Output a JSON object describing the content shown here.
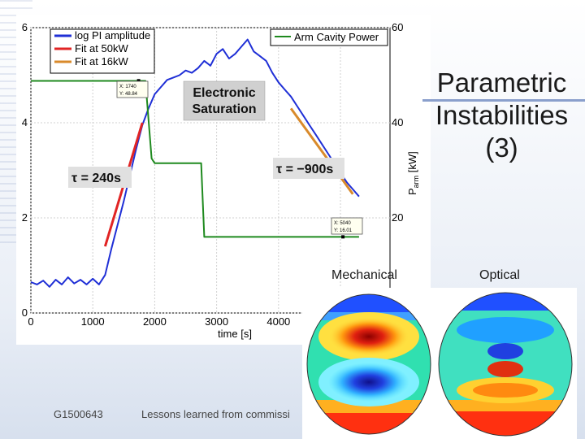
{
  "slide": {
    "title_lines": [
      "Parametric",
      "Instabilities",
      "(3)"
    ],
    "footer_id": "G1500643",
    "footer_text": "Lessons learned from commissi"
  },
  "panels": {
    "mechanical_label": "Mechanical",
    "optical_label": "Optical"
  },
  "colors": {
    "pi": "#1f2fd6",
    "fit50": "#e12424",
    "fit16": "#d98a2b",
    "power": "#1f8a1f"
  },
  "chart_data": {
    "type": "line",
    "xlabel": "time [s]",
    "ylabel_right": "P_arm [kW]",
    "ylabel_right_main": "P",
    "ylabel_right_sub": "arm",
    "ylabel_right_unit": " [kW]",
    "xlim": [
      0,
      5800
    ],
    "ylim_left": [
      0,
      6
    ],
    "ylim_right": [
      0,
      60
    ],
    "x_ticks": [
      "0",
      "1000",
      "2000",
      "3000",
      "4000"
    ],
    "y_ticks_left": [
      "0",
      "2",
      "4",
      "6"
    ],
    "y_ticks_right": [
      "20",
      "40",
      "60"
    ],
    "grid": true,
    "legend_left": [
      "log PI amplitude",
      "Fit at 50kW",
      "Fit at 16kW"
    ],
    "legend_right": [
      "Arm Cavity Power"
    ],
    "series": [
      {
        "name": "log PI amplitude",
        "x": [
          0,
          100,
          200,
          300,
          400,
          500,
          600,
          700,
          800,
          900,
          1000,
          1100,
          1200,
          1300,
          1400,
          1500,
          1600,
          1700,
          1800,
          1900,
          2000,
          2100,
          2200,
          2300,
          2400,
          2500,
          2600,
          2700,
          2800,
          2900,
          3000,
          3100,
          3200,
          3300,
          3400,
          3500,
          3600,
          3700,
          3800,
          3900,
          4000,
          4100,
          4200,
          4300,
          4400,
          4500,
          4600,
          4700,
          4800,
          4900,
          5000,
          5100,
          5200,
          5300
        ],
        "y": [
          0.65,
          0.6,
          0.68,
          0.55,
          0.7,
          0.6,
          0.75,
          0.62,
          0.7,
          0.6,
          0.72,
          0.6,
          0.8,
          1.35,
          1.85,
          2.35,
          2.9,
          3.45,
          3.95,
          4.3,
          4.6,
          4.75,
          4.9,
          4.95,
          5.0,
          5.1,
          5.05,
          5.15,
          5.3,
          5.2,
          5.45,
          5.55,
          5.35,
          5.45,
          5.6,
          5.75,
          5.5,
          5.4,
          5.3,
          5.05,
          4.85,
          4.7,
          4.55,
          4.35,
          4.15,
          3.95,
          3.75,
          3.55,
          3.35,
          3.15,
          2.95,
          2.75,
          2.6,
          2.45
        ]
      },
      {
        "name": "Fit at 50kW",
        "x": [
          1200,
          1800
        ],
        "y": [
          1.4,
          4.0
        ]
      },
      {
        "name": "Fit at 16kW",
        "x": [
          4200,
          5200
        ],
        "y": [
          4.3,
          2.5
        ]
      },
      {
        "name": "Arm Cavity Power",
        "axis": "right",
        "x": [
          0,
          1850,
          1950,
          2000,
          2750,
          2800,
          4800,
          5300
        ],
        "y": [
          48.8,
          48.8,
          32.5,
          31.5,
          31.5,
          16.0,
          16.0,
          16.0
        ]
      }
    ],
    "annotations": {
      "saturation": [
        "Electronic",
        "Saturation"
      ],
      "tau1": "τ = 240s",
      "tau2": "τ = −900s",
      "datatip1": [
        "X: 1740",
        "Y: 48.84"
      ],
      "datatip2": [
        "X: 5040",
        "Y: 16.01"
      ]
    }
  }
}
